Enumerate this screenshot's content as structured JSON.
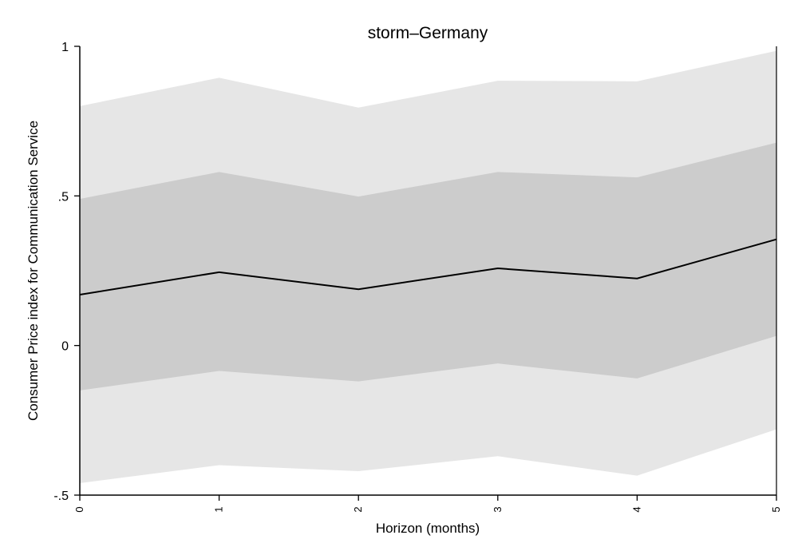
{
  "chart_data": {
    "type": "line",
    "title": "storm–Germany",
    "xlabel": "Horizon (months)",
    "ylabel": "Consumer Price index for Communication Service",
    "x": [
      0,
      1,
      2,
      3,
      4,
      5
    ],
    "x_ticks": [
      "0",
      "1",
      "2",
      "3",
      "4",
      "5"
    ],
    "xlim": [
      0,
      5
    ],
    "ylim": [
      -0.5,
      1
    ],
    "y_ticks": [
      {
        "value": -0.5,
        "label": "-.5"
      },
      {
        "value": 0,
        "label": "0"
      },
      {
        "value": 0.5,
        "label": ".5"
      },
      {
        "value": 1,
        "label": "1"
      }
    ],
    "grid": false,
    "legend": "none",
    "series": [
      {
        "values": [
          0.17,
          0.245,
          0.188,
          0.258,
          0.224,
          0.355
        ],
        "color": "#000000"
      }
    ],
    "bands": [
      {
        "lower": [
          -0.46,
          -0.4,
          -0.42,
          -0.37,
          -0.435,
          -0.28
        ],
        "upper": [
          0.8,
          0.895,
          0.795,
          0.885,
          0.883,
          0.985
        ],
        "color": "#e6e6e6"
      },
      {
        "lower": [
          -0.15,
          -0.085,
          -0.12,
          -0.06,
          -0.11,
          0.032
        ],
        "upper": [
          0.49,
          0.58,
          0.498,
          0.58,
          0.562,
          0.678
        ],
        "color": "#cccccc"
      }
    ]
  }
}
